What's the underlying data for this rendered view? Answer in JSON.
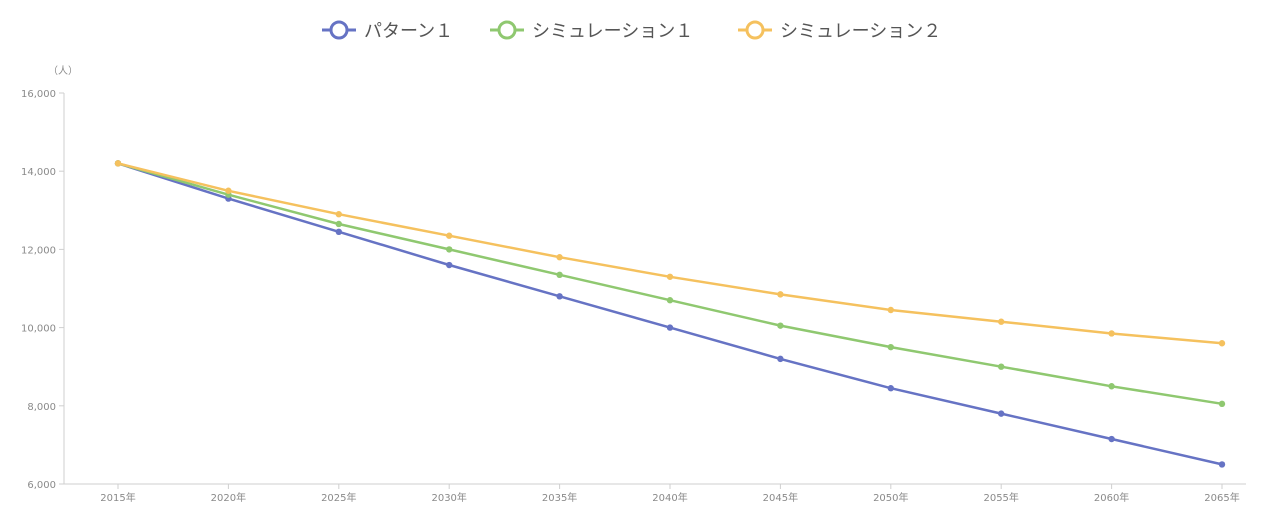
{
  "chart_data": {
    "type": "line",
    "title": "",
    "xlabel": "",
    "ylabel": "",
    "y_unit": "（人）",
    "categories": [
      "2015年",
      "2020年",
      "2025年",
      "2030年",
      "2035年",
      "2040年",
      "2045年",
      "2050年",
      "2055年",
      "2060年",
      "2065年"
    ],
    "ylim": [
      6000,
      16000
    ],
    "yticks": [
      6000,
      8000,
      10000,
      12000,
      14000,
      16000
    ],
    "ytick_labels": [
      "6,000",
      "8,000",
      "10,000",
      "12,000",
      "14,000",
      "16,000"
    ],
    "grid": false,
    "legend_position": "top-center",
    "series": [
      {
        "name": "パターン１",
        "color": "#6673c4",
        "values": [
          14200,
          13300,
          12450,
          11600,
          10800,
          10000,
          9200,
          8450,
          7800,
          7150,
          6500
        ]
      },
      {
        "name": "シミュレーション１",
        "color": "#8fc870",
        "values": [
          14200,
          13400,
          12650,
          12000,
          11350,
          10700,
          10050,
          9500,
          9000,
          8500,
          8050
        ]
      },
      {
        "name": "シミュレーション２",
        "color": "#f5c15e",
        "values": [
          14200,
          13500,
          12900,
          12350,
          11800,
          11300,
          10850,
          10450,
          10150,
          9850,
          9600
        ]
      }
    ]
  }
}
